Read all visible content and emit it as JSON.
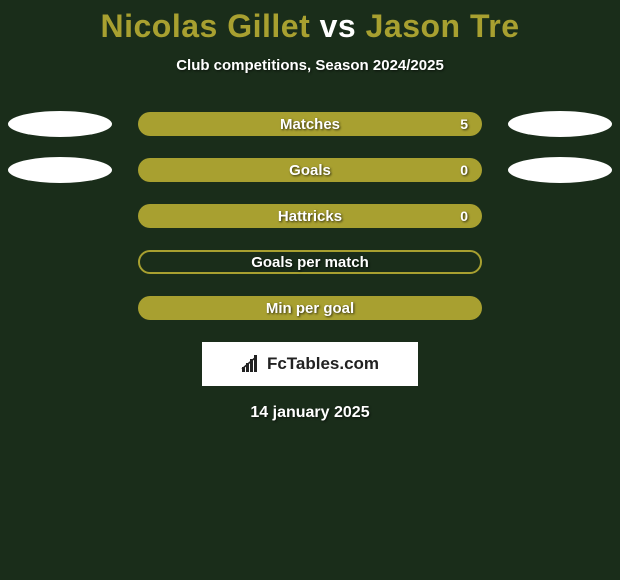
{
  "title": {
    "player1": "Nicolas Gillet",
    "vs": "vs",
    "player2": "Jason Tre",
    "player1_color": "#a8a030",
    "vs_color": "#ffffff",
    "player2_color": "#a8a030"
  },
  "subtitle": "Club competitions, Season 2024/2025",
  "background_color": "#1a2d1a",
  "ellipse_color": "#ffffff",
  "stats": [
    {
      "label": "Matches",
      "value": "5",
      "show_value": true,
      "show_left_ellipse": true,
      "show_right_ellipse": true,
      "bar_bg": "#a8a030",
      "bar_border": "#a8a030",
      "hollow": false
    },
    {
      "label": "Goals",
      "value": "0",
      "show_value": true,
      "show_left_ellipse": true,
      "show_right_ellipse": true,
      "bar_bg": "#a8a030",
      "bar_border": "#a8a030",
      "hollow": false
    },
    {
      "label": "Hattricks",
      "value": "0",
      "show_value": true,
      "show_left_ellipse": false,
      "show_right_ellipse": false,
      "bar_bg": "#a8a030",
      "bar_border": "#a8a030",
      "hollow": false
    },
    {
      "label": "Goals per match",
      "value": "",
      "show_value": false,
      "show_left_ellipse": false,
      "show_right_ellipse": false,
      "bar_bg": "transparent",
      "bar_border": "#a8a030",
      "hollow": true
    },
    {
      "label": "Min per goal",
      "value": "",
      "show_value": false,
      "show_left_ellipse": false,
      "show_right_ellipse": false,
      "bar_bg": "#a8a030",
      "bar_border": "#a8a030",
      "hollow": false
    }
  ],
  "logo": {
    "text": "FcTables.com",
    "icon_name": "bar-chart-icon"
  },
  "date": "14 january 2025"
}
